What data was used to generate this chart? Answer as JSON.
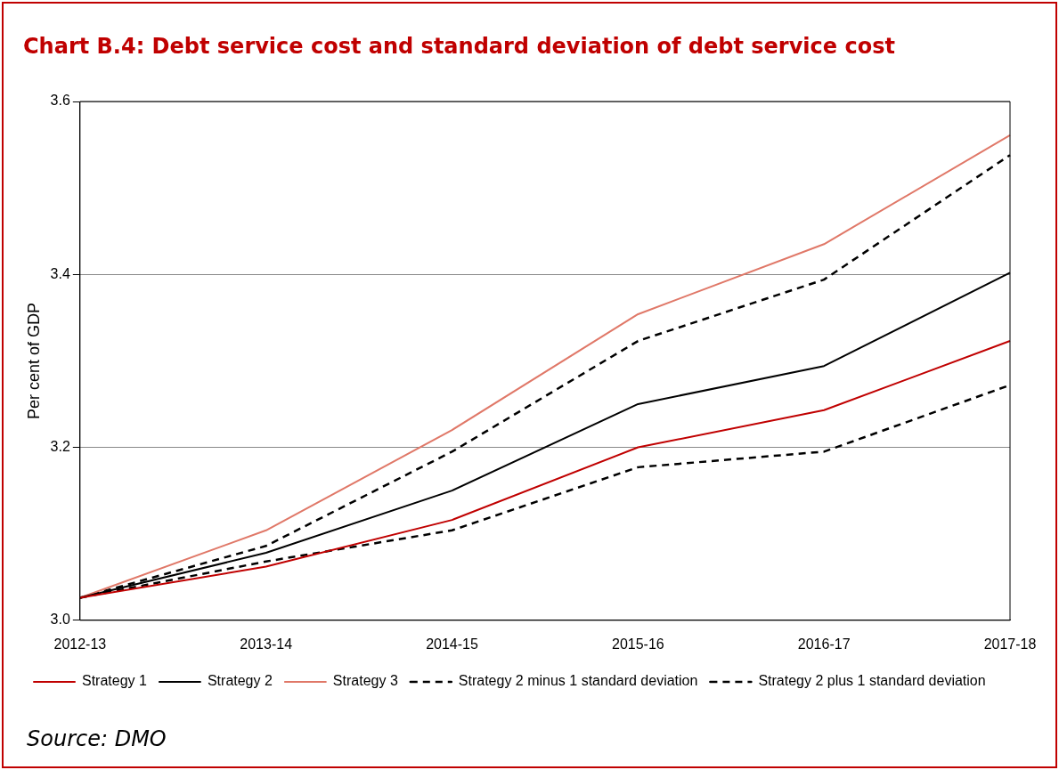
{
  "chart_data": {
    "type": "line",
    "title": "Chart B.4: Debt service cost and standard deviation of debt service cost",
    "ylabel": "Per cent of GDP",
    "categories": [
      "2012-13",
      "2013-14",
      "2014-15",
      "2015-16",
      "2016-17",
      "2017-18"
    ],
    "series": [
      {
        "name": "Strategy 1",
        "color": "#c00000",
        "values": [
          3.026,
          3.062,
          3.116,
          3.2,
          3.243,
          3.323
        ]
      },
      {
        "name": "Strategy 2",
        "color": "#000000",
        "values": [
          3.026,
          3.078,
          3.15,
          3.25,
          3.294,
          3.402
        ]
      },
      {
        "name": "Strategy 3",
        "color": "#e07868",
        "values": [
          3.026,
          3.104,
          3.22,
          3.354,
          3.435,
          3.561
        ]
      },
      {
        "name": "Strategy 2 minus 1 standard deviation",
        "color": "#000000",
        "line_style": "dashed",
        "values": [
          3.026,
          3.068,
          3.104,
          3.177,
          3.195,
          3.272
        ]
      },
      {
        "name": "Strategy 2 plus 1 standard deviation",
        "color": "#000000",
        "line_style": "dashed",
        "values": [
          3.026,
          3.086,
          3.195,
          3.323,
          3.394,
          3.538
        ]
      }
    ],
    "ylim": [
      3.0,
      3.6
    ],
    "yticks": [
      {
        "value": 3.0,
        "label": "3.0"
      },
      {
        "value": 3.2,
        "label": "3.2"
      },
      {
        "value": 3.4,
        "label": "3.4"
      },
      {
        "value": 3.6,
        "label": "3.6"
      }
    ],
    "grid": "y",
    "legend": "bottom",
    "marker": "none",
    "line_style": "solid",
    "annotations": [
      "Source: DMO"
    ]
  }
}
